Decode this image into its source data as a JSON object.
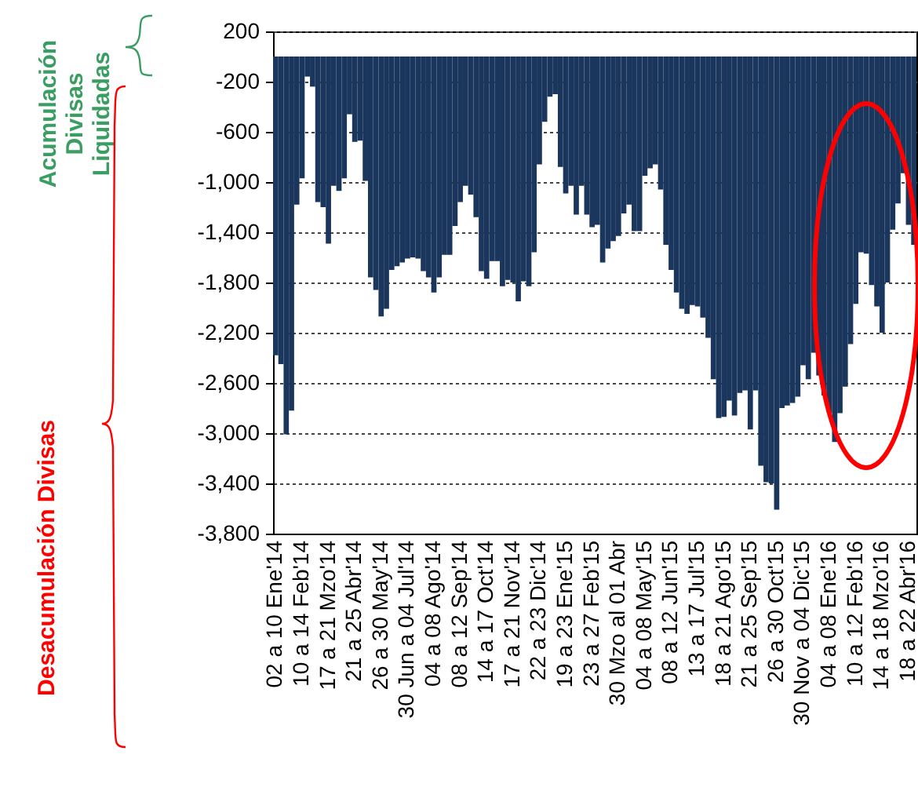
{
  "chart_data": {
    "type": "bar",
    "color": "#1b365d",
    "grid": "y",
    "annotations": [
      "Acumulación Divisas Liquidadas",
      "Desacumulación Divisas"
    ],
    "ylim": [
      -3800,
      200
    ],
    "yticks": [
      200,
      -200,
      -600,
      {
        "value": -1000,
        "label": "-1,000"
      },
      {
        "value": -1400,
        "label": "-1,400"
      },
      {
        "value": -1800,
        "label": "-1,800"
      },
      {
        "value": -2200,
        "label": "-2,200"
      },
      {
        "value": -2600,
        "label": "-2,600"
      },
      {
        "value": -3000,
        "label": "-3,000"
      },
      {
        "value": -3400,
        "label": "-3,400"
      },
      {
        "value": -3800,
        "label": "-3,800"
      }
    ],
    "categories": [
      "02 a 10 Ene'14",
      null,
      null,
      null,
      null,
      "10 a 14 Feb'14",
      null,
      null,
      null,
      null,
      "17 a 21 Mzo'14",
      null,
      null,
      null,
      null,
      "21 a 25 Abr'14",
      null,
      null,
      null,
      null,
      "26 a 30 May'14",
      null,
      null,
      null,
      null,
      "30 Jun a 04 Jul'14",
      null,
      null,
      null,
      null,
      "04 a 08 Ago'14",
      null,
      null,
      null,
      null,
      "08 a 12 Sep'14",
      null,
      null,
      null,
      null,
      "14 a 17 Oct'14",
      null,
      null,
      null,
      null,
      "17 a 21 Nov'14",
      null,
      null,
      null,
      null,
      "22 a 23 Dic'14",
      null,
      null,
      null,
      null,
      "19 a 23 Ene'15",
      null,
      null,
      null,
      null,
      "23 a 27 Feb'15",
      null,
      null,
      null,
      null,
      "30 Mzo al 01 Abr",
      null,
      null,
      null,
      null,
      "04 a 08 May'15",
      null,
      null,
      null,
      null,
      "08 a 12 Jun'15",
      null,
      null,
      null,
      null,
      "13 a 17 Jul'15",
      null,
      null,
      null,
      null,
      "18 a 21 Ago'15",
      null,
      null,
      null,
      null,
      "21 a 25 Sep'15",
      null,
      null,
      null,
      null,
      "26 a 30 Oct'15",
      null,
      null,
      null,
      null,
      "30 Nov a 04 Dic'15",
      null,
      null,
      null,
      null,
      "04 a 08 Ene'16",
      null,
      null,
      null,
      null,
      "10 a 12 Feb'16",
      null,
      null,
      null,
      null,
      "14 a 18 Mzo'16",
      null,
      null,
      null,
      null,
      "18 a 22 Abr'16",
      null
    ],
    "values": [
      -2380,
      -2450,
      -3010,
      -2820,
      -1180,
      -970,
      -160,
      -240,
      -1160,
      -1200,
      -1490,
      -1030,
      -1070,
      -970,
      -460,
      -680,
      -670,
      -990,
      -1760,
      -1860,
      -2070,
      -2010,
      -1700,
      -1670,
      -1640,
      -1610,
      -1600,
      -1610,
      -1710,
      -1760,
      -1880,
      -1760,
      -1580,
      -1580,
      -1350,
      -1160,
      -1030,
      -1100,
      -1280,
      -1710,
      -1770,
      -1630,
      -1630,
      -1830,
      -1780,
      -1800,
      -1950,
      -1790,
      -1830,
      -1560,
      -860,
      -520,
      -320,
      -300,
      -880,
      -1090,
      -1030,
      -1260,
      -1030,
      -1260,
      -1360,
      -1340,
      -1640,
      -1530,
      -1470,
      -1430,
      -1250,
      -1180,
      -1390,
      -1390,
      -950,
      -890,
      -860,
      -1060,
      -1500,
      -1700,
      -1880,
      -2010,
      -2050,
      -1980,
      -1990,
      -2080,
      -2240,
      -2570,
      -2880,
      -2870,
      -2740,
      -2860,
      -2680,
      -2660,
      -2970,
      -2660,
      -3260,
      -3390,
      -3400,
      -3610,
      -2800,
      -2780,
      -2760,
      -2710,
      -2460,
      -2570,
      -2360,
      -2540,
      -2700,
      -2840,
      -3070,
      -2840,
      -2630,
      -2290,
      -1970,
      -1560,
      -1570,
      -1820,
      -1990,
      -2200,
      -1800,
      -1380,
      -1170,
      -930,
      -1340,
      -1500
    ]
  }
}
